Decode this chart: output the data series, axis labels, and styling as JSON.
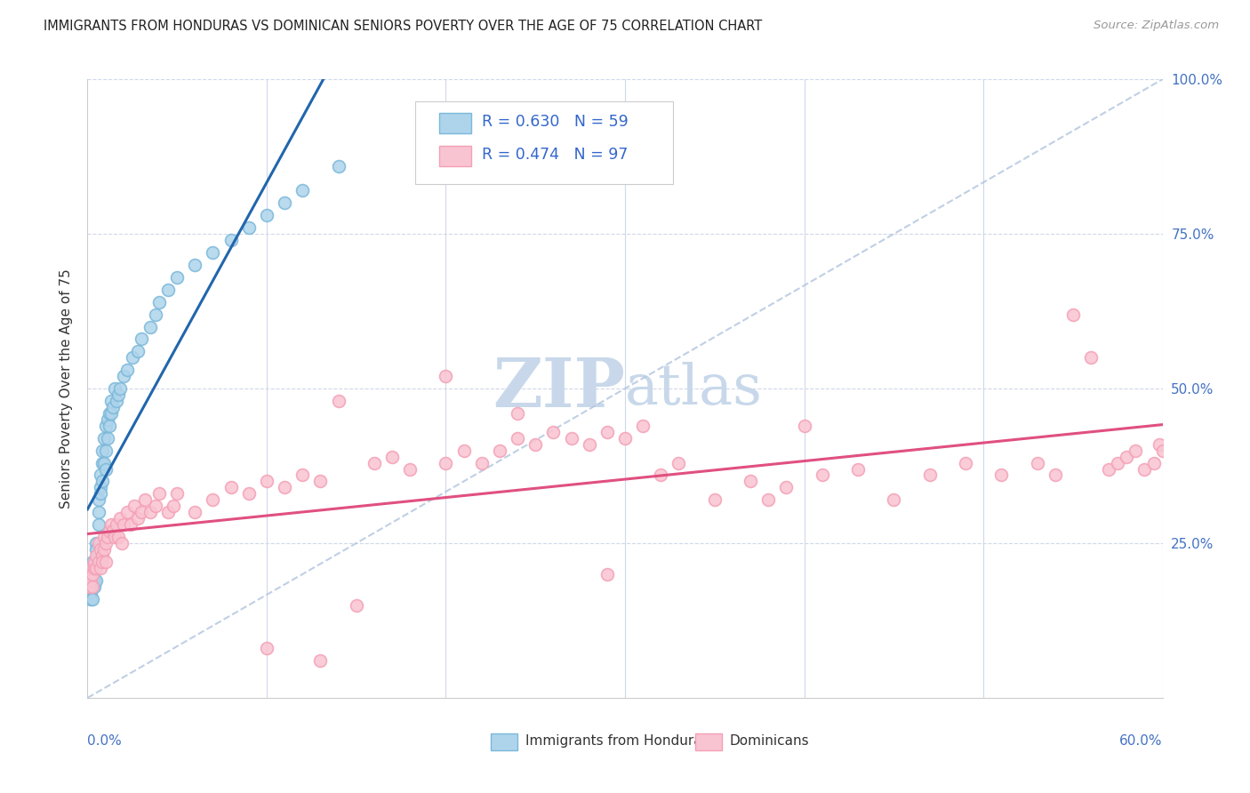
{
  "title": "IMMIGRANTS FROM HONDURAS VS DOMINICAN SENIORS POVERTY OVER THE AGE OF 75 CORRELATION CHART",
  "source": "Source: ZipAtlas.com",
  "ylabel": "Seniors Poverty Over the Age of 75",
  "legend_blue_label": "Immigrants from Honduras",
  "legend_pink_label": "Dominicans",
  "r_blue": 0.63,
  "n_blue": 59,
  "r_pink": 0.474,
  "n_pink": 97,
  "blue_color": "#7ab8d9",
  "pink_color": "#f4a0b5",
  "blue_fill": "#aed4eb",
  "pink_fill": "#f9c4d2",
  "blue_line_color": "#2166ac",
  "pink_line_color": "#e05080",
  "diag_color": "#b0c4de",
  "watermark_zip": "ZIP",
  "watermark_atlas": "atlas",
  "watermark_color": "#c8d8ea",
  "blue_x": [
    0.001,
    0.001,
    0.002,
    0.002,
    0.002,
    0.003,
    0.003,
    0.003,
    0.003,
    0.004,
    0.004,
    0.004,
    0.005,
    0.005,
    0.005,
    0.005,
    0.006,
    0.006,
    0.006,
    0.007,
    0.007,
    0.007,
    0.008,
    0.008,
    0.008,
    0.009,
    0.009,
    0.01,
    0.01,
    0.01,
    0.011,
    0.011,
    0.012,
    0.012,
    0.013,
    0.013,
    0.014,
    0.015,
    0.016,
    0.017,
    0.018,
    0.02,
    0.022,
    0.025,
    0.028,
    0.03,
    0.035,
    0.038,
    0.04,
    0.045,
    0.05,
    0.06,
    0.07,
    0.08,
    0.09,
    0.1,
    0.11,
    0.12,
    0.14
  ],
  "blue_y": [
    0.18,
    0.2,
    0.17,
    0.19,
    0.16,
    0.18,
    0.2,
    0.16,
    0.22,
    0.19,
    0.21,
    0.18,
    0.25,
    0.22,
    0.19,
    0.24,
    0.3,
    0.28,
    0.32,
    0.34,
    0.36,
    0.33,
    0.38,
    0.4,
    0.35,
    0.38,
    0.42,
    0.37,
    0.4,
    0.44,
    0.42,
    0.45,
    0.44,
    0.46,
    0.46,
    0.48,
    0.47,
    0.5,
    0.48,
    0.49,
    0.5,
    0.52,
    0.53,
    0.55,
    0.56,
    0.58,
    0.6,
    0.62,
    0.64,
    0.66,
    0.68,
    0.7,
    0.72,
    0.74,
    0.76,
    0.78,
    0.8,
    0.82,
    0.86
  ],
  "pink_x": [
    0.001,
    0.001,
    0.002,
    0.002,
    0.003,
    0.003,
    0.004,
    0.004,
    0.005,
    0.005,
    0.006,
    0.006,
    0.007,
    0.007,
    0.008,
    0.008,
    0.009,
    0.009,
    0.01,
    0.01,
    0.011,
    0.012,
    0.013,
    0.014,
    0.015,
    0.016,
    0.017,
    0.018,
    0.019,
    0.02,
    0.022,
    0.024,
    0.026,
    0.028,
    0.03,
    0.032,
    0.035,
    0.038,
    0.04,
    0.045,
    0.048,
    0.05,
    0.06,
    0.07,
    0.08,
    0.09,
    0.1,
    0.11,
    0.12,
    0.13,
    0.14,
    0.15,
    0.16,
    0.17,
    0.18,
    0.2,
    0.21,
    0.22,
    0.23,
    0.24,
    0.25,
    0.26,
    0.27,
    0.28,
    0.29,
    0.3,
    0.31,
    0.32,
    0.33,
    0.35,
    0.37,
    0.39,
    0.41,
    0.43,
    0.45,
    0.47,
    0.49,
    0.51,
    0.53,
    0.54,
    0.55,
    0.56,
    0.57,
    0.575,
    0.58,
    0.585,
    0.59,
    0.595,
    0.598,
    0.6,
    0.24,
    0.29,
    0.13,
    0.2,
    0.38,
    0.4,
    0.1
  ],
  "pink_y": [
    0.18,
    0.2,
    0.19,
    0.21,
    0.2,
    0.18,
    0.21,
    0.22,
    0.21,
    0.23,
    0.22,
    0.25,
    0.21,
    0.24,
    0.23,
    0.22,
    0.24,
    0.26,
    0.25,
    0.22,
    0.26,
    0.27,
    0.28,
    0.27,
    0.26,
    0.28,
    0.26,
    0.29,
    0.25,
    0.28,
    0.3,
    0.28,
    0.31,
    0.29,
    0.3,
    0.32,
    0.3,
    0.31,
    0.33,
    0.3,
    0.31,
    0.33,
    0.3,
    0.32,
    0.34,
    0.33,
    0.35,
    0.34,
    0.36,
    0.35,
    0.48,
    0.15,
    0.38,
    0.39,
    0.37,
    0.38,
    0.4,
    0.38,
    0.4,
    0.42,
    0.41,
    0.43,
    0.42,
    0.41,
    0.43,
    0.42,
    0.44,
    0.36,
    0.38,
    0.32,
    0.35,
    0.34,
    0.36,
    0.37,
    0.32,
    0.36,
    0.38,
    0.36,
    0.38,
    0.36,
    0.62,
    0.55,
    0.37,
    0.38,
    0.39,
    0.4,
    0.37,
    0.38,
    0.41,
    0.4,
    0.46,
    0.2,
    0.06,
    0.52,
    0.32,
    0.44,
    0.08
  ]
}
